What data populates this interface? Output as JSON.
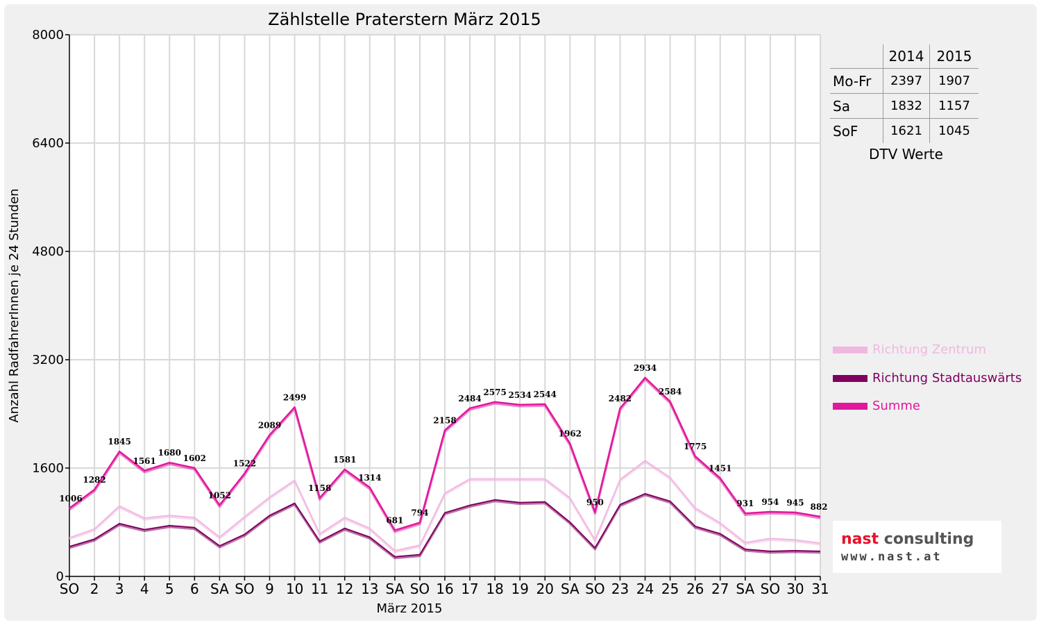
{
  "chart_data": {
    "type": "line",
    "title": "Zählstelle Praterstern März 2015",
    "xlabel": "März 2015",
    "ylabel": "Anzahl RadfahrerInnen je 24 Stunden",
    "ylim": [
      0,
      8000
    ],
    "yticks": [
      "0",
      "1600",
      "3200",
      "4800",
      "6400",
      "8000"
    ],
    "ytick_values": [
      0,
      1600,
      3200,
      4800,
      6400,
      8000
    ],
    "grid": true,
    "legend_position": "right",
    "categories": [
      "SO",
      "2",
      "3",
      "4",
      "5",
      "6",
      "SA",
      "SO",
      "9",
      "10",
      "11",
      "12",
      "13",
      "SA",
      "SO",
      "16",
      "17",
      "18",
      "19",
      "20",
      "SA",
      "SO",
      "23",
      "24",
      "25",
      "26",
      "27",
      "SA",
      "SO",
      "30",
      "31"
    ],
    "category_is_sunday": [
      true,
      false,
      false,
      false,
      false,
      false,
      false,
      true,
      false,
      false,
      false,
      false,
      false,
      false,
      true,
      false,
      false,
      false,
      false,
      false,
      false,
      true,
      false,
      false,
      false,
      false,
      false,
      false,
      true,
      false,
      false
    ],
    "series": [
      {
        "name": "Richtung Zentrum",
        "color": "#f0b8e0",
        "values": [
          570,
          700,
          1040,
          860,
          900,
          870,
          580,
          880,
          1170,
          1420,
          630,
          870,
          710,
          380,
          460,
          1230,
          1440,
          1440,
          1440,
          1440,
          1160,
          540,
          1430,
          1710,
          1460,
          1010,
          790,
          500,
          560,
          540,
          490
        ]
      },
      {
        "name": "Richtung Stadtauswärts",
        "color": "#800060",
        "values": [
          440,
          550,
          780,
          690,
          750,
          720,
          450,
          620,
          900,
          1080,
          520,
          710,
          580,
          290,
          320,
          940,
          1050,
          1130,
          1090,
          1100,
          800,
          420,
          1060,
          1220,
          1110,
          740,
          630,
          400,
          370,
          380,
          370
        ]
      },
      {
        "name": "Summe",
        "color": "#e0189c",
        "values": [
          1006,
          1282,
          1845,
          1561,
          1680,
          1602,
          1052,
          1522,
          2089,
          2499,
          1158,
          1581,
          1314,
          681,
          794,
          2158,
          2484,
          2575,
          2534,
          2544,
          1962,
          950,
          2482,
          2934,
          2584,
          1775,
          1451,
          931,
          954,
          945,
          882
        ]
      }
    ],
    "data_labels": [
      "1006",
      "1282",
      "1845",
      "1561",
      "1680",
      "1602",
      "1052",
      "1522",
      "2089",
      "2499",
      "1158",
      "1581",
      "1314",
      "681",
      "794",
      "2158",
      "2484",
      "2575",
      "2534",
      "2544",
      "1962",
      "950",
      "2482",
      "2934",
      "2584",
      "1775",
      "1451",
      "931",
      "954",
      "945",
      "882"
    ]
  },
  "dtv": {
    "headers": [
      "",
      "2014",
      "2015"
    ],
    "rows": [
      {
        "label": "Mo-Fr",
        "v2014": "2397",
        "v2015": "1907"
      },
      {
        "label": "Sa",
        "v2014": "1832",
        "v2015": "1157"
      },
      {
        "label": "SoF",
        "v2014": "1621",
        "v2015": "1045"
      }
    ],
    "caption": "DTV Werte"
  },
  "legend": [
    {
      "label": "Richtung Zentrum",
      "color": "#f0b8e0"
    },
    {
      "label": "Richtung Stadtauswärts",
      "color": "#800060"
    },
    {
      "label": "Summe",
      "color": "#e0189c"
    }
  ],
  "logo": {
    "name_part1": "nast",
    "name_part2": "consulting",
    "url": "www.nast.at",
    "color1": "#e8102a",
    "color2": "#555555"
  },
  "colors": {
    "sunday": "#ff0000",
    "grid": "#d8d8d8"
  }
}
